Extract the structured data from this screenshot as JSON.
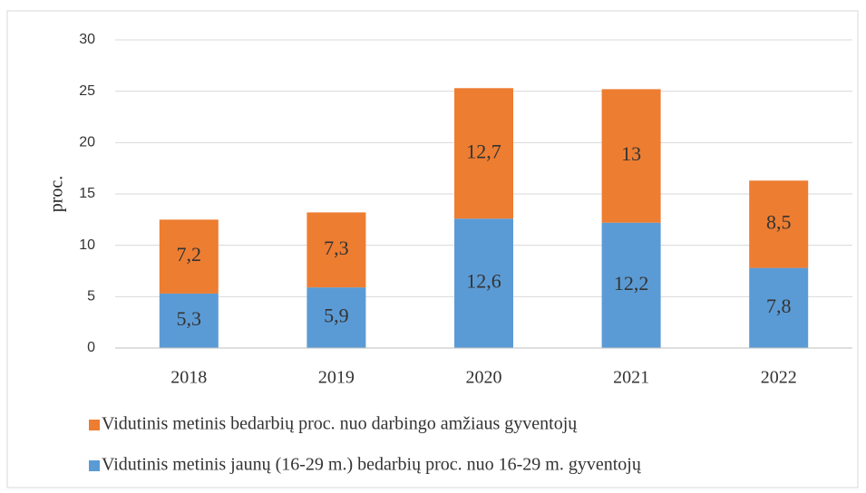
{
  "chart_data": {
    "type": "stacked_bar",
    "y_label": "proc.",
    "categories": [
      "2018",
      "2019",
      "2020",
      "2021",
      "2022"
    ],
    "series": [
      {
        "name": "Vidutinis metinis jaunų (16-29 m.) bedarbių proc. nuo 16-29 m. gyventojų",
        "color": "#5b9bd5",
        "values": [
          5.3,
          5.9,
          12.6,
          12.2,
          7.8
        ],
        "value_labels": [
          "5,3",
          "5,9",
          "12,6",
          "12,2",
          "7,8"
        ]
      },
      {
        "name": "Vidutinis metinis bedarbių proc. nuo darbingo amžiaus gyventojų",
        "color": "#ed7d31",
        "values": [
          7.2,
          7.3,
          12.7,
          13,
          8.5
        ],
        "value_labels": [
          "7,2",
          "7,3",
          "12,7",
          "13",
          "8,5"
        ]
      }
    ],
    "ylim": [
      0,
      30
    ],
    "yticks": [
      0,
      5,
      10,
      15,
      20,
      25,
      30
    ],
    "grid": true,
    "legend": "bottom"
  }
}
